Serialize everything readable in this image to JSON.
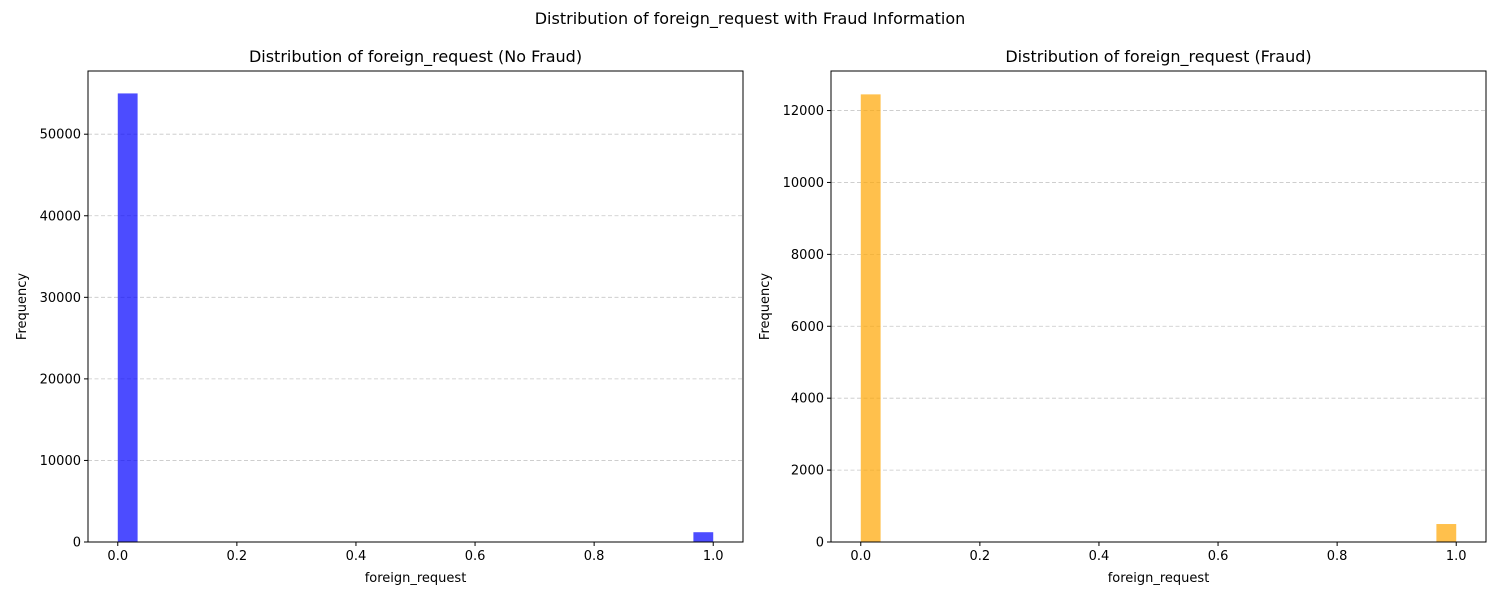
{
  "figure": {
    "title": "Distribution of foreign_request with Fraud Information"
  },
  "chart_data": [
    {
      "type": "bar",
      "title": "Distribution of foreign_request (No Fraud)",
      "xlabel": "foreign_request",
      "ylabel": "Frequency",
      "xlim": [
        -0.05,
        1.05
      ],
      "ylim": [
        0,
        57750
      ],
      "xticks": [
        0.0,
        0.2,
        0.4,
        0.6,
        0.8,
        1.0
      ],
      "xtick_labels": [
        "0.0",
        "0.2",
        "0.4",
        "0.6",
        "0.8",
        "1.0"
      ],
      "yticks": [
        0,
        10000,
        20000,
        30000,
        40000,
        50000
      ],
      "ytick_labels": [
        "0",
        "10000",
        "20000",
        "30000",
        "40000",
        "50000"
      ],
      "grid": "y dashed",
      "color": "#0000ff",
      "bins": [
        {
          "x0": 0.0,
          "x1": 0.0333,
          "value": 55000
        },
        {
          "x0": 0.9667,
          "x1": 1.0,
          "value": 1200
        }
      ]
    },
    {
      "type": "bar",
      "title": "Distribution of foreign_request (Fraud)",
      "xlabel": "foreign_request",
      "ylabel": "Frequency",
      "xlim": [
        -0.05,
        1.05
      ],
      "ylim": [
        0,
        13100
      ],
      "xticks": [
        0.0,
        0.2,
        0.4,
        0.6,
        0.8,
        1.0
      ],
      "xtick_labels": [
        "0.0",
        "0.2",
        "0.4",
        "0.6",
        "0.8",
        "1.0"
      ],
      "yticks": [
        0,
        2000,
        4000,
        6000,
        8000,
        10000,
        12000
      ],
      "ytick_labels": [
        "0",
        "2000",
        "4000",
        "6000",
        "8000",
        "10000",
        "12000"
      ],
      "grid": "y dashed",
      "color": "#ffa500",
      "bins": [
        {
          "x0": 0.0,
          "x1": 0.0333,
          "value": 12450
        },
        {
          "x0": 0.9667,
          "x1": 1.0,
          "value": 500
        }
      ]
    }
  ]
}
